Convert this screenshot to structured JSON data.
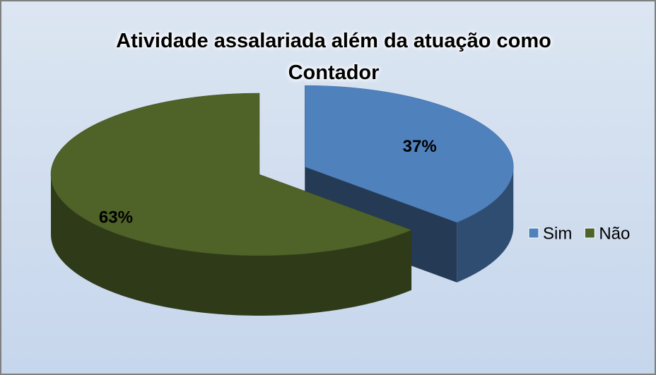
{
  "chart_data": {
    "type": "pie",
    "title": "Atividade assalariada além da atuação como Contador",
    "categories": [
      "Sim",
      "Não"
    ],
    "values": [
      37,
      63
    ],
    "value_labels": [
      "37%",
      "63%"
    ],
    "colors": [
      "#4f81bd",
      "#4f6228"
    ],
    "legend": "right"
  }
}
